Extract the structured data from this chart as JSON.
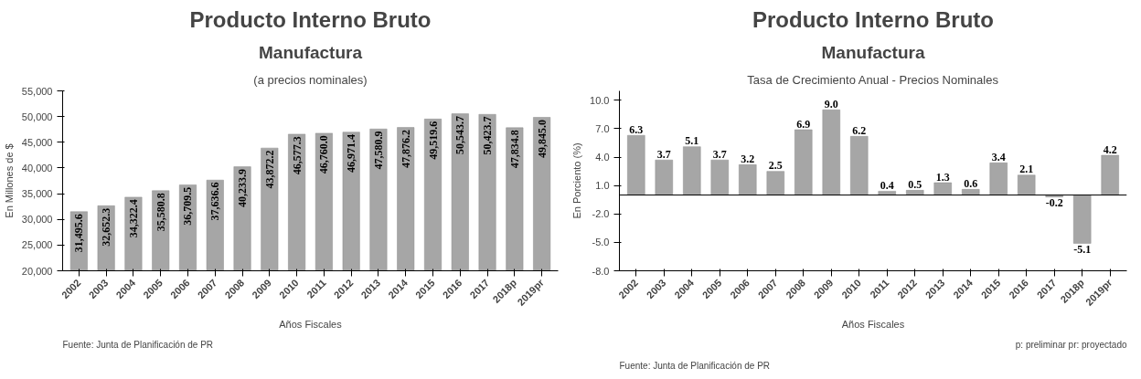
{
  "chart_data": [
    {
      "type": "bar",
      "title": "Producto Interno Bruto",
      "subtitle": "Manufactura",
      "ylabel": "En Millones de $",
      "xlabel": "Años Fiscales",
      "annotations": [
        "(a precios nominales)",
        "Fuente: Junta de Planificación de PR"
      ],
      "categories": [
        "2002",
        "2003",
        "2004",
        "2005",
        "2006",
        "2007",
        "2008",
        "2009",
        "2010",
        "2011",
        "2012",
        "2013",
        "2014",
        "2015",
        "2016",
        "2017",
        "2018p",
        "2019pr"
      ],
      "values": [
        31495.6,
        32652.3,
        34322.4,
        35580.8,
        36709.5,
        37636.6,
        40233.9,
        43872.2,
        46577.3,
        46760.0,
        46971.4,
        47580.9,
        47876.2,
        49519.6,
        50543.7,
        50423.7,
        47834.8,
        49845.0
      ],
      "value_labels": [
        "31,495.6",
        "32,652.3",
        "34,322.4",
        "35,580.8",
        "36,709.5",
        "37,636.6",
        "40,233.9",
        "43,872.2",
        "46,577.3",
        "46,760.0",
        "46,971.4",
        "47,580.9",
        "47,876.2",
        "49,519.6",
        "50,543.7",
        "50,423.7",
        "47,834.8",
        "49,845.0"
      ],
      "color": "#a6a6a6",
      "ylim": [
        20000,
        55000
      ],
      "yticks": [
        {
          "value": 20000,
          "label": "20,000"
        },
        {
          "value": 25000,
          "label": "25,000"
        },
        {
          "value": 30000,
          "label": "30,000"
        },
        {
          "value": 35000,
          "label": "35,000"
        },
        {
          "value": 40000,
          "label": "40,000"
        },
        {
          "value": 45000,
          "label": "45,000"
        },
        {
          "value": 50000,
          "label": "50,000"
        },
        {
          "value": 55000,
          "label": "55,000"
        }
      ],
      "grid": false
    },
    {
      "type": "bar",
      "title": "Producto Interno Bruto",
      "subtitle": "Manufactura",
      "ylabel": "En Porciento (%)",
      "xlabel": "Años Fiscales",
      "annotations": [
        "Tasa de Crecimiento Anual - Precios Nominales",
        "Fuente: Junta de Planificación de PR",
        "p: preliminar pr: proyectado"
      ],
      "categories": [
        "2002",
        "2003",
        "2004",
        "2005",
        "2006",
        "2007",
        "2008",
        "2009",
        "2010",
        "2011",
        "2012",
        "2013",
        "2014",
        "2015",
        "2016",
        "2017",
        "2018p",
        "2019pr"
      ],
      "values": [
        6.3,
        3.7,
        5.1,
        3.7,
        3.2,
        2.5,
        6.9,
        9.0,
        6.2,
        0.4,
        0.5,
        1.3,
        0.6,
        3.4,
        2.1,
        -0.2,
        -5.1,
        4.2
      ],
      "value_labels": [
        "6.3",
        "3.7",
        "5.1",
        "3.7",
        "3.2",
        "2.5",
        "6.9",
        "9.0",
        "6.2",
        "0.4",
        "0.5",
        "1.3",
        "0.6",
        "3.4",
        "2.1",
        "-0.2",
        "-5.1",
        "4.2"
      ],
      "color": "#a6a6a6",
      "ylim": [
        -8,
        11
      ],
      "yticks": [
        {
          "value": -8,
          "label": "-8.0"
        },
        {
          "value": -5,
          "label": "-5.0"
        },
        {
          "value": -2,
          "label": "-2.0"
        },
        {
          "value": 1,
          "label": "1.0"
        },
        {
          "value": 4,
          "label": "4.0"
        },
        {
          "value": 7,
          "label": "7.0"
        },
        {
          "value": 10,
          "label": "10.0"
        }
      ],
      "grid": false
    }
  ]
}
